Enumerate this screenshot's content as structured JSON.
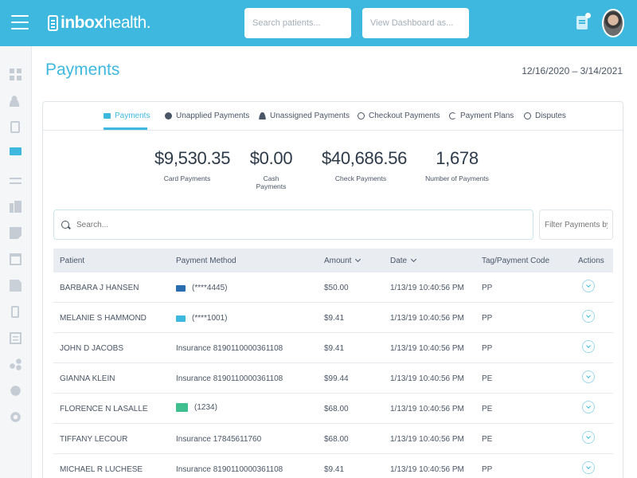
{
  "header": {
    "logo_bold": "inbox",
    "logo_light": "health.",
    "search_placeholder": "Search patients...",
    "view_dashboard_placeholder": "View Dashboard as..."
  },
  "page": {
    "title": "Payments",
    "date_range": "12/16/2020 – 3/14/2021"
  },
  "tabs": [
    {
      "label": "Payments",
      "icon": "card-icon",
      "active": true
    },
    {
      "label": "Unapplied Payments",
      "icon": "info-icon"
    },
    {
      "label": "Unassigned Payments",
      "icon": "user-question-icon"
    },
    {
      "label": "Checkout Payments",
      "icon": "checkout-icon"
    },
    {
      "label": "Payment Plans",
      "icon": "sync-icon"
    },
    {
      "label": "Disputes",
      "icon": "x-circle-icon"
    }
  ],
  "stats": [
    {
      "value": "$9,530.35",
      "label": "Card Payments"
    },
    {
      "value": "$0.00",
      "label": "Cash Payments"
    },
    {
      "value": "$40,686.56",
      "label": "Check Payments"
    },
    {
      "value": "1,678",
      "label": "Number of Payments"
    }
  ],
  "search": {
    "placeholder": "Search...",
    "filter_placeholder": "Filter Payments by..."
  },
  "table": {
    "columns": [
      "Patient",
      "Payment Method",
      "Amount",
      "Date",
      "Tag/Payment Code",
      "Actions"
    ],
    "rows": [
      {
        "patient": "BARBARA J HANSEN",
        "method_icon": "visa-card-icon",
        "method": "(****4445)",
        "amount": "$50.00",
        "date": "1/13/19 10:40:56 PM",
        "tag": "PP"
      },
      {
        "patient": "MELANIE S HAMMOND",
        "method_icon": "amex-card-icon",
        "method": "(****1001)",
        "amount": "$9.41",
        "date": "1/13/19 10:40:56 PM",
        "tag": "PP"
      },
      {
        "patient": "JOHN D JACOBS",
        "method_icon": "",
        "method": "Insurance 8190110000361108",
        "amount": "$9.41",
        "date": "1/13/19 10:40:56 PM",
        "tag": "PP"
      },
      {
        "patient": "GIANNA KLEIN",
        "method_icon": "",
        "method": "Insurance 8190110000361108",
        "amount": "$99.44",
        "date": "1/13/19 10:40:56 PM",
        "tag": "PE"
      },
      {
        "patient": "FLORENCE N LASALLE",
        "method_icon": "cash-icon",
        "method": "(1234)",
        "amount": "$68.00",
        "date": "1/13/19 10:40:56 PM",
        "tag": "PE"
      },
      {
        "patient": "TIFFANY LECOUR",
        "method_icon": "",
        "method": "Insurance 17845611760",
        "amount": "$68.00",
        "date": "1/13/19 10:40:56 PM",
        "tag": "PE"
      },
      {
        "patient": "MICHAEL R LUCHESE",
        "method_icon": "",
        "method": "Insurance 8190110000361108",
        "amount": "$9.41",
        "date": "1/13/19 10:40:56 PM",
        "tag": "PP"
      }
    ]
  },
  "colors": {
    "brand": "#3fb8e0",
    "text": "#4a5566",
    "header_row": "#e9edf2"
  }
}
